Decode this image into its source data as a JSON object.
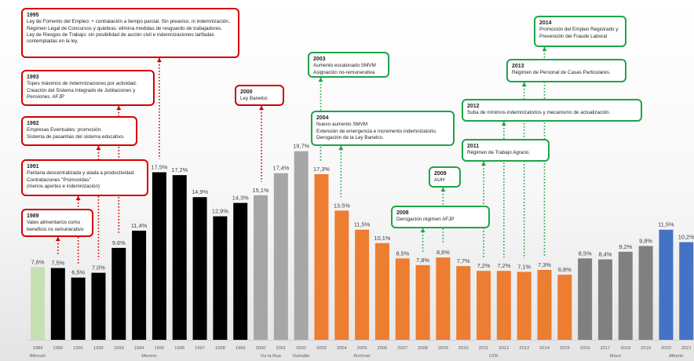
{
  "chart_data": {
    "type": "bar",
    "title": "",
    "xlabel": "",
    "ylabel": "",
    "grid": false,
    "categories": [
      "1989",
      "1990",
      "1991",
      "1992",
      "1993",
      "1994",
      "1995",
      "1996",
      "1997",
      "1998",
      "1999",
      "2000",
      "2001",
      "2002",
      "2003",
      "2004",
      "2005",
      "2006",
      "2007",
      "2008",
      "2009",
      "2010",
      "2011",
      "2012",
      "2013",
      "2014",
      "2015",
      "2016",
      "2017",
      "2018",
      "2019",
      "2020",
      "2021"
    ],
    "values": [
      7.6,
      7.5,
      6.5,
      7.0,
      9.6,
      11.4,
      17.5,
      17.2,
      14.9,
      12.9,
      14.3,
      15.1,
      17.4,
      19.7,
      17.3,
      13.5,
      11.5,
      10.1,
      8.5,
      7.8,
      8.6,
      7.7,
      7.2,
      7.2,
      7.1,
      7.3,
      6.8,
      8.5,
      8.4,
      9.2,
      9.8,
      11.5,
      10.2
    ],
    "value_labels": [
      "7,6%",
      "7,5%",
      "6,5%",
      "7,0%",
      "9,6%",
      "11,4%",
      "17,5%",
      "17,2%",
      "14,9%",
      "12,9%",
      "14,3%",
      "15,1%",
      "17,4%",
      "19,7%",
      "17,3%",
      "13,5%",
      "11,5%",
      "10,1%",
      "8,5%",
      "7,8%",
      "8,6%",
      "7,7%",
      "7,2%",
      "7,2%",
      "7,1%",
      "7,3%",
      "6,8%",
      "8,5%",
      "8,4%",
      "9,2%",
      "9,8%",
      "11,5%",
      "10,2%"
    ],
    "bar_colors": [
      "#c6e0b4",
      "#000000",
      "#000000",
      "#000000",
      "#000000",
      "#000000",
      "#000000",
      "#000000",
      "#000000",
      "#000000",
      "#000000",
      "#a6a6a6",
      "#a6a6a6",
      "#a6a6a6",
      "#ed7d31",
      "#ed7d31",
      "#ed7d31",
      "#ed7d31",
      "#ed7d31",
      "#ed7d31",
      "#ed7d31",
      "#ed7d31",
      "#ed7d31",
      "#ed7d31",
      "#ed7d31",
      "#ed7d31",
      "#ed7d31",
      "#808080",
      "#808080",
      "#808080",
      "#808080",
      "#4472c4",
      "#4472c4"
    ],
    "ylim": [
      0,
      25
    ],
    "governments": [
      {
        "name": "Alfonsín",
        "first": 0,
        "last": 0
      },
      {
        "name": "Menem",
        "first": 1,
        "last": 10
      },
      {
        "name": "De la Rua",
        "first": 11,
        "last": 12
      },
      {
        "name": "Duhalde",
        "first": 13,
        "last": 13
      },
      {
        "name": "Kirchner",
        "first": 14,
        "last": 18
      },
      {
        "name": "CFK",
        "first": 19,
        "last": 26
      },
      {
        "name": "Macri",
        "first": 27,
        "last": 30
      },
      {
        "name": "Alberto",
        "first": 31,
        "last": 32
      }
    ],
    "annotations": [
      {
        "year": "1995",
        "bar_index": 6,
        "color": "red",
        "text": "Ley de Fomento del Empleo: + contratación a tiempo parcial. Sin preaviso, ni indemnización..\nRégimen Legal de Concursos y quiebras: elimina medidas de resguardo de trabajadores.\nLey de Riesgos de Trabajo: sin posibilidad de acción civil e indemnizaciones tarifadas contempladas en la ley."
      },
      {
        "year": "1993",
        "bar_index": 4,
        "color": "red",
        "text": "Topes máximos de indemnizaciones por actividad.\nCreación del Sistema Integrado de Jubilaciones y Pensiones. AFJP"
      },
      {
        "year": "1992",
        "bar_index": 3,
        "color": "red",
        "text": "Empresas Eventuales: promoción.\nSistema de pasantías del sistema educativo."
      },
      {
        "year": "1991",
        "bar_index": 2,
        "color": "red",
        "text": "Paritaria descentralizada y atada a productividad.\nContrataciones \"Promovidas\"\n(menos aportes e indemnización)"
      },
      {
        "year": "1989",
        "bar_index": 1,
        "color": "red",
        "text": "Vales alimentarios como beneficio no remunerativo"
      },
      {
        "year": "2000",
        "bar_index": 11,
        "color": "red",
        "text": "Ley Banelco"
      },
      {
        "year": "2003",
        "bar_index": 14,
        "color": "green",
        "text": "Aumento escalonado SMVM\nAsignación no-remunerativa"
      },
      {
        "year": "2004",
        "bar_index": 15,
        "color": "green",
        "text": "Nuevo aumento SMVM\nExtensión de emergencia e incremento indemnizatorio.\nDerogación de la Ley Banelco."
      },
      {
        "year": "2008",
        "bar_index": 19,
        "color": "green",
        "text": "Derogación régimen AFJP"
      },
      {
        "year": "2009",
        "bar_index": 20,
        "color": "green",
        "text": "AUH"
      },
      {
        "year": "2011",
        "bar_index": 22,
        "color": "green",
        "text": "Régimen de Trabajo Agrario."
      },
      {
        "year": "2012",
        "bar_index": 23,
        "color": "green",
        "text": "Suba de mínimos indemnizatorios y  mecanismo de actualización."
      },
      {
        "year": "2013",
        "bar_index": 24,
        "color": "green",
        "text": "Régimen de Personal de Casas Particulares."
      },
      {
        "year": "2014",
        "bar_index": 25,
        "color": "green",
        "text": "Promoción del Empleo Registrado y Prevención del Fraude Laboral"
      }
    ]
  }
}
